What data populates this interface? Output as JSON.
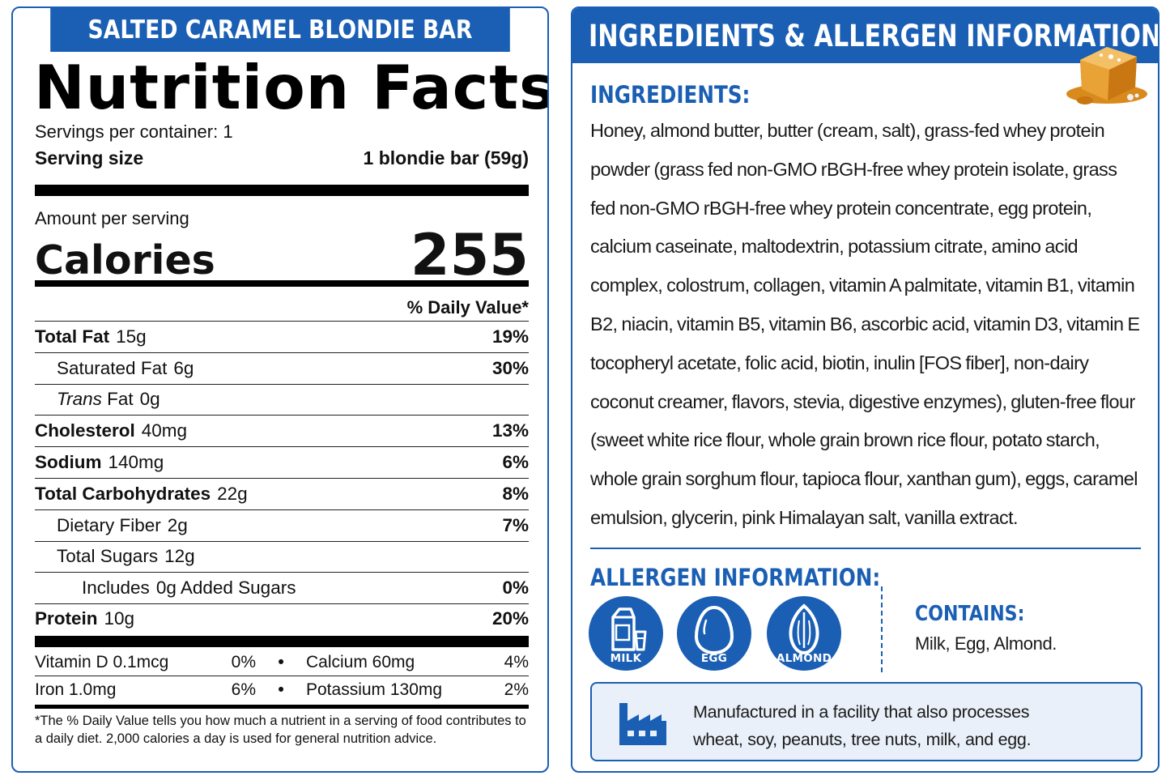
{
  "colors": {
    "brand_blue": "#1a5fb4",
    "panel_bg": "#ffffff",
    "facility_bg": "#e9f0f9"
  },
  "nutrition": {
    "product_name": "SALTED CARAMEL BLONDIE BAR",
    "title": "Nutrition Facts",
    "servings_per_container": "Servings per container: 1",
    "serving_size_label": "Serving size",
    "serving_size_value": "1 blondie bar (59g)",
    "amount_per_serving": "Amount per serving",
    "calories_label": "Calories",
    "calories_value": "255",
    "daily_value_header": "% Daily Value*",
    "nutrients": [
      {
        "name": "Total Fat",
        "amount": "15g",
        "dv": "19%"
      },
      {
        "name": "Saturated Fat",
        "amount": "6g",
        "dv": "30%"
      },
      {
        "name": "Trans",
        "name_suffix": "Fat",
        "amount": "0g",
        "dv": ""
      },
      {
        "name": "Cholesterol",
        "amount": "40mg",
        "dv": "13%"
      },
      {
        "name": "Sodium",
        "amount": "140mg",
        "dv": "6%"
      },
      {
        "name": "Total Carbohydrates",
        "amount": "22g",
        "dv": "8%"
      },
      {
        "name": "Dietary Fiber",
        "amount": "2g",
        "dv": "7%"
      },
      {
        "name": "Total Sugars",
        "amount": "12g",
        "dv": ""
      },
      {
        "name": "Includes",
        "amount": "0g Added Sugars",
        "dv": "0%"
      },
      {
        "name": "Protein",
        "amount": "10g",
        "dv": "20%"
      }
    ],
    "vitamins": [
      {
        "name": "Vitamin D 0.1mcg",
        "dv": "0%",
        "name2": "Calcium 60mg",
        "dv2": "4%"
      },
      {
        "name": "Iron 1.0mg",
        "dv": "6%",
        "name2": "Potassium 130mg",
        "dv2": "2%"
      }
    ],
    "bullet": "•",
    "footnote": "*The % Daily Value tells you how much a nutrient in a serving of food contributes to a daily diet. 2,000 calories a day is used for general nutrition advice."
  },
  "ingredients_panel": {
    "banner": "INGREDIENTS & ALLERGEN INFORMATION",
    "ingredients_heading": "INGREDIENTS:",
    "ingredients_text": "Honey, almond butter, butter (cream, salt), grass-fed whey protein powder (grass fed non-GMO rBGH-free whey protein isolate, grass fed non-GMO rBGH-free whey protein concentrate, egg protein, calcium caseinate, maltodextrin, potassium citrate, amino acid complex, colostrum, collagen, vitamin A palmitate, vitamin B1, vitamin B2, niacin, vitamin B5, vitamin B6, ascorbic acid, vitamin D3, vitamin E tocopheryl acetate, folic acid, biotin, inulin [FOS fiber], non-dairy coconut creamer, flavors, stevia, digestive enzymes), gluten-free flour (sweet white rice flour, whole grain brown rice flour, potato starch, whole grain sorghum flour, tapioca flour, xanthan gum), eggs, caramel emulsion, glycerin, pink Himalayan salt, vanilla extract.",
    "allergen_heading": "ALLERGEN INFORMATION:",
    "allergen_icons": [
      {
        "label": "MILK",
        "icon": "milk-carton-icon"
      },
      {
        "label": "EGG",
        "icon": "egg-icon"
      },
      {
        "label": "ALMOND",
        "icon": "almond-icon"
      }
    ],
    "contains_heading": "CONTAINS:",
    "contains_text": "Milk, Egg, Almond.",
    "facility_line1": "Manufactured in a facility that also processes",
    "facility_line2": "wheat, soy, peanuts, tree nuts, milk, and egg.",
    "facility_icon": "factory-icon",
    "decor_icon": "caramel-cube-icon"
  }
}
